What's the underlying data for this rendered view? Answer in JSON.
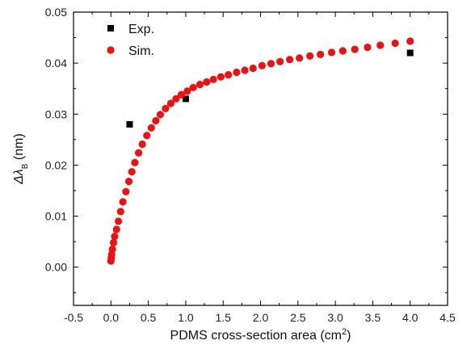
{
  "chart_data": {
    "type": "scatter",
    "title": "",
    "xlabel": {
      "main": "PDMS cross-section area (cm",
      "sup": "2",
      "tail": ")"
    },
    "ylabel": {
      "main": "Δλ",
      "sub": "B",
      "tail": " (nm)"
    },
    "xlim": [
      -0.5,
      4.5
    ],
    "ylim": [
      -0.0075,
      0.05
    ],
    "x_ticks": [
      "-0.5",
      "0.0",
      "0.5",
      "1.0",
      "1.5",
      "2.0",
      "2.5",
      "3.0",
      "3.5",
      "4.0",
      "4.5"
    ],
    "y_ticks": [
      "0.00",
      "0.01",
      "0.02",
      "0.03",
      "0.04",
      "0.05"
    ],
    "legend_position": "top-left",
    "colors": {
      "exp": "#000000",
      "sim": "#ee1111",
      "axis": "#000000"
    },
    "series": [
      {
        "name": "Exp.",
        "marker": "square",
        "x": [
          0.25,
          1.0,
          4.0
        ],
        "y": [
          0.028,
          0.033,
          0.042
        ]
      },
      {
        "name": "Sim.",
        "marker": "circle",
        "x": [
          0.0,
          0.005,
          0.01,
          0.02,
          0.035,
          0.05,
          0.075,
          0.1,
          0.13,
          0.16,
          0.2,
          0.24,
          0.28,
          0.32,
          0.37,
          0.42,
          0.48,
          0.54,
          0.6,
          0.66,
          0.73,
          0.8,
          0.87,
          0.94,
          1.02,
          1.1,
          1.19,
          1.28,
          1.37,
          1.47,
          1.57,
          1.68,
          1.79,
          1.9,
          2.02,
          2.14,
          2.26,
          2.39,
          2.52,
          2.66,
          2.8,
          2.95,
          3.1,
          3.26,
          3.43,
          3.6,
          3.8,
          4.0
        ],
        "y": [
          0.0012,
          0.0018,
          0.0025,
          0.0035,
          0.0048,
          0.006,
          0.0074,
          0.009,
          0.0109,
          0.0128,
          0.0148,
          0.0168,
          0.0187,
          0.0205,
          0.0224,
          0.0241,
          0.0258,
          0.0273,
          0.0287,
          0.0299,
          0.0311,
          0.0321,
          0.033,
          0.0338,
          0.0345,
          0.0352,
          0.0358,
          0.0363,
          0.0368,
          0.0373,
          0.0377,
          0.0382,
          0.0386,
          0.039,
          0.0395,
          0.0399,
          0.0403,
          0.0407,
          0.041,
          0.0414,
          0.0417,
          0.0421,
          0.0424,
          0.0427,
          0.0431,
          0.0435,
          0.0439,
          0.0443
        ]
      }
    ]
  }
}
